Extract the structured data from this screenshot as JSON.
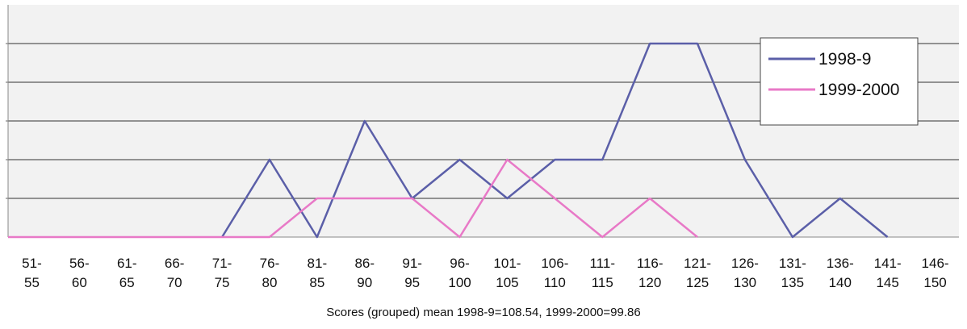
{
  "chart_data": {
    "type": "line",
    "xlabel": "Scores (grouped) mean 1998-9=108.54, 1999-2000=99.86",
    "categories": [
      [
        "51-",
        "55"
      ],
      [
        "56-",
        "60"
      ],
      [
        "61-",
        "65"
      ],
      [
        "66-",
        "70"
      ],
      [
        "71-",
        "75"
      ],
      [
        "76-",
        "80"
      ],
      [
        "81-",
        "85"
      ],
      [
        "86-",
        "90"
      ],
      [
        "91-",
        "95"
      ],
      [
        "96-",
        "100"
      ],
      [
        "101-",
        "105"
      ],
      [
        "106-",
        "110"
      ],
      [
        "111-",
        "115"
      ],
      [
        "116-",
        "120"
      ],
      [
        "121-",
        "125"
      ],
      [
        "126-",
        "130"
      ],
      [
        "131-",
        "135"
      ],
      [
        "136-",
        "140"
      ],
      [
        "141-",
        "145"
      ],
      [
        "146-",
        "150"
      ]
    ],
    "ylim": [
      0,
      5
    ],
    "grid": true,
    "legend_position": "top-right",
    "series": [
      {
        "name": "1998-9",
        "color": "#5b5fa8",
        "values": [
          null,
          null,
          null,
          null,
          0,
          2,
          0,
          3,
          1,
          2,
          1,
          2,
          2,
          5,
          5,
          2,
          0,
          1,
          0,
          null
        ]
      },
      {
        "name": "1999-2000",
        "color": "#e879c7",
        "values": [
          0,
          0,
          0,
          0,
          0,
          0,
          1,
          1,
          1,
          0,
          2,
          1,
          0,
          1,
          0,
          null,
          null,
          null,
          null,
          null
        ]
      }
    ]
  }
}
